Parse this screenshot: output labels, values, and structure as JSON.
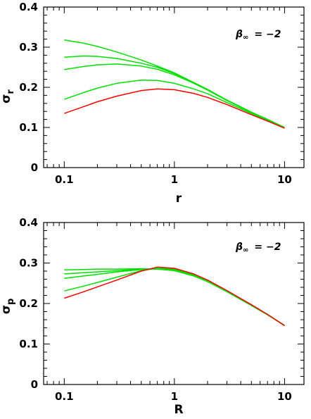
{
  "chart_data": [
    {
      "type": "line",
      "xscale": "log",
      "xlim": [
        0.065,
        15
      ],
      "ylim": [
        0,
        0.4
      ],
      "xlabel": "r",
      "ylabel_symbol": "σ",
      "ylabel_sub": "r",
      "xticks": [
        0.1,
        1,
        10
      ],
      "xtick_labels": [
        "0.1",
        "1",
        "10"
      ],
      "yticks": [
        0,
        0.1,
        0.2,
        0.3,
        0.4
      ],
      "ytick_labels": [
        "0",
        "0.1",
        "0.2",
        "0.3",
        "0.4"
      ],
      "annotation": {
        "symbol": "β",
        "sub": "∞",
        "text": "= −2"
      },
      "series": [
        {
          "color": "#00e000",
          "x": [
            0.1,
            0.15,
            0.2,
            0.3,
            0.5,
            0.7,
            1,
            1.5,
            2,
            3,
            5,
            7,
            10
          ],
          "y": [
            0.318,
            0.31,
            0.302,
            0.288,
            0.268,
            0.253,
            0.236,
            0.212,
            0.195,
            0.168,
            0.138,
            0.12,
            0.1
          ]
        },
        {
          "color": "#00e000",
          "x": [
            0.1,
            0.15,
            0.2,
            0.3,
            0.5,
            0.7,
            1,
            1.5,
            2,
            3,
            5,
            7,
            10
          ],
          "y": [
            0.275,
            0.278,
            0.277,
            0.272,
            0.26,
            0.25,
            0.234,
            0.211,
            0.194,
            0.168,
            0.138,
            0.12,
            0.1
          ]
        },
        {
          "color": "#00e000",
          "x": [
            0.1,
            0.15,
            0.2,
            0.3,
            0.5,
            0.7,
            1,
            1.5,
            2,
            3,
            5,
            7,
            10
          ],
          "y": [
            0.244,
            0.252,
            0.256,
            0.258,
            0.253,
            0.245,
            0.231,
            0.21,
            0.193,
            0.167,
            0.137,
            0.12,
            0.1
          ]
        },
        {
          "color": "#00e000",
          "x": [
            0.1,
            0.15,
            0.2,
            0.3,
            0.5,
            0.7,
            1,
            1.5,
            2,
            3,
            5,
            7,
            10
          ],
          "y": [
            0.17,
            0.187,
            0.198,
            0.21,
            0.218,
            0.217,
            0.21,
            0.196,
            0.184,
            0.162,
            0.135,
            0.118,
            0.1
          ]
        },
        {
          "color": "#ff0000",
          "x": [
            0.1,
            0.15,
            0.2,
            0.3,
            0.5,
            0.7,
            1,
            1.5,
            2,
            3,
            5,
            7,
            10
          ],
          "y": [
            0.135,
            0.152,
            0.164,
            0.178,
            0.192,
            0.196,
            0.194,
            0.185,
            0.175,
            0.157,
            0.132,
            0.116,
            0.098
          ]
        }
      ]
    },
    {
      "type": "line",
      "xscale": "log",
      "xlim": [
        0.065,
        15
      ],
      "ylim": [
        0,
        0.4
      ],
      "xlabel": "R",
      "ylabel_symbol": "σ",
      "ylabel_sub": "p",
      "xticks": [
        0.1,
        1,
        10
      ],
      "xtick_labels": [
        "0.1",
        "1",
        "10"
      ],
      "yticks": [
        0,
        0.1,
        0.2,
        0.3,
        0.4
      ],
      "ytick_labels": [
        "0",
        "0.1",
        "0.2",
        "0.3",
        "0.4"
      ],
      "annotation": {
        "symbol": "β",
        "sub": "∞",
        "text": "= −2"
      },
      "series": [
        {
          "color": "#00e000",
          "x": [
            0.1,
            0.15,
            0.2,
            0.3,
            0.5,
            0.7,
            1,
            1.5,
            2,
            3,
            5,
            7,
            10
          ],
          "y": [
            0.283,
            0.284,
            0.285,
            0.285,
            0.286,
            0.285,
            0.281,
            0.268,
            0.254,
            0.229,
            0.195,
            0.172,
            0.146
          ]
        },
        {
          "color": "#00e000",
          "x": [
            0.1,
            0.15,
            0.2,
            0.3,
            0.5,
            0.7,
            1,
            1.5,
            2,
            3,
            5,
            7,
            10
          ],
          "y": [
            0.273,
            0.276,
            0.278,
            0.281,
            0.285,
            0.285,
            0.282,
            0.269,
            0.255,
            0.23,
            0.196,
            0.173,
            0.146
          ]
        },
        {
          "color": "#00e000",
          "x": [
            0.1,
            0.15,
            0.2,
            0.3,
            0.5,
            0.7,
            1,
            1.5,
            2,
            3,
            5,
            7,
            10
          ],
          "y": [
            0.262,
            0.268,
            0.272,
            0.278,
            0.284,
            0.286,
            0.283,
            0.27,
            0.256,
            0.23,
            0.196,
            0.173,
            0.146
          ]
        },
        {
          "color": "#00e000",
          "x": [
            0.1,
            0.15,
            0.2,
            0.3,
            0.5,
            0.7,
            1,
            1.5,
            2,
            3,
            5,
            7,
            10
          ],
          "y": [
            0.231,
            0.243,
            0.252,
            0.265,
            0.281,
            0.287,
            0.285,
            0.272,
            0.257,
            0.231,
            0.197,
            0.173,
            0.146
          ]
        },
        {
          "color": "#ff0000",
          "x": [
            0.1,
            0.15,
            0.2,
            0.3,
            0.5,
            0.7,
            1,
            1.5,
            2,
            3,
            5,
            7,
            10
          ],
          "y": [
            0.213,
            0.229,
            0.241,
            0.258,
            0.28,
            0.29,
            0.287,
            0.273,
            0.258,
            0.232,
            0.197,
            0.173,
            0.145
          ]
        }
      ]
    }
  ]
}
